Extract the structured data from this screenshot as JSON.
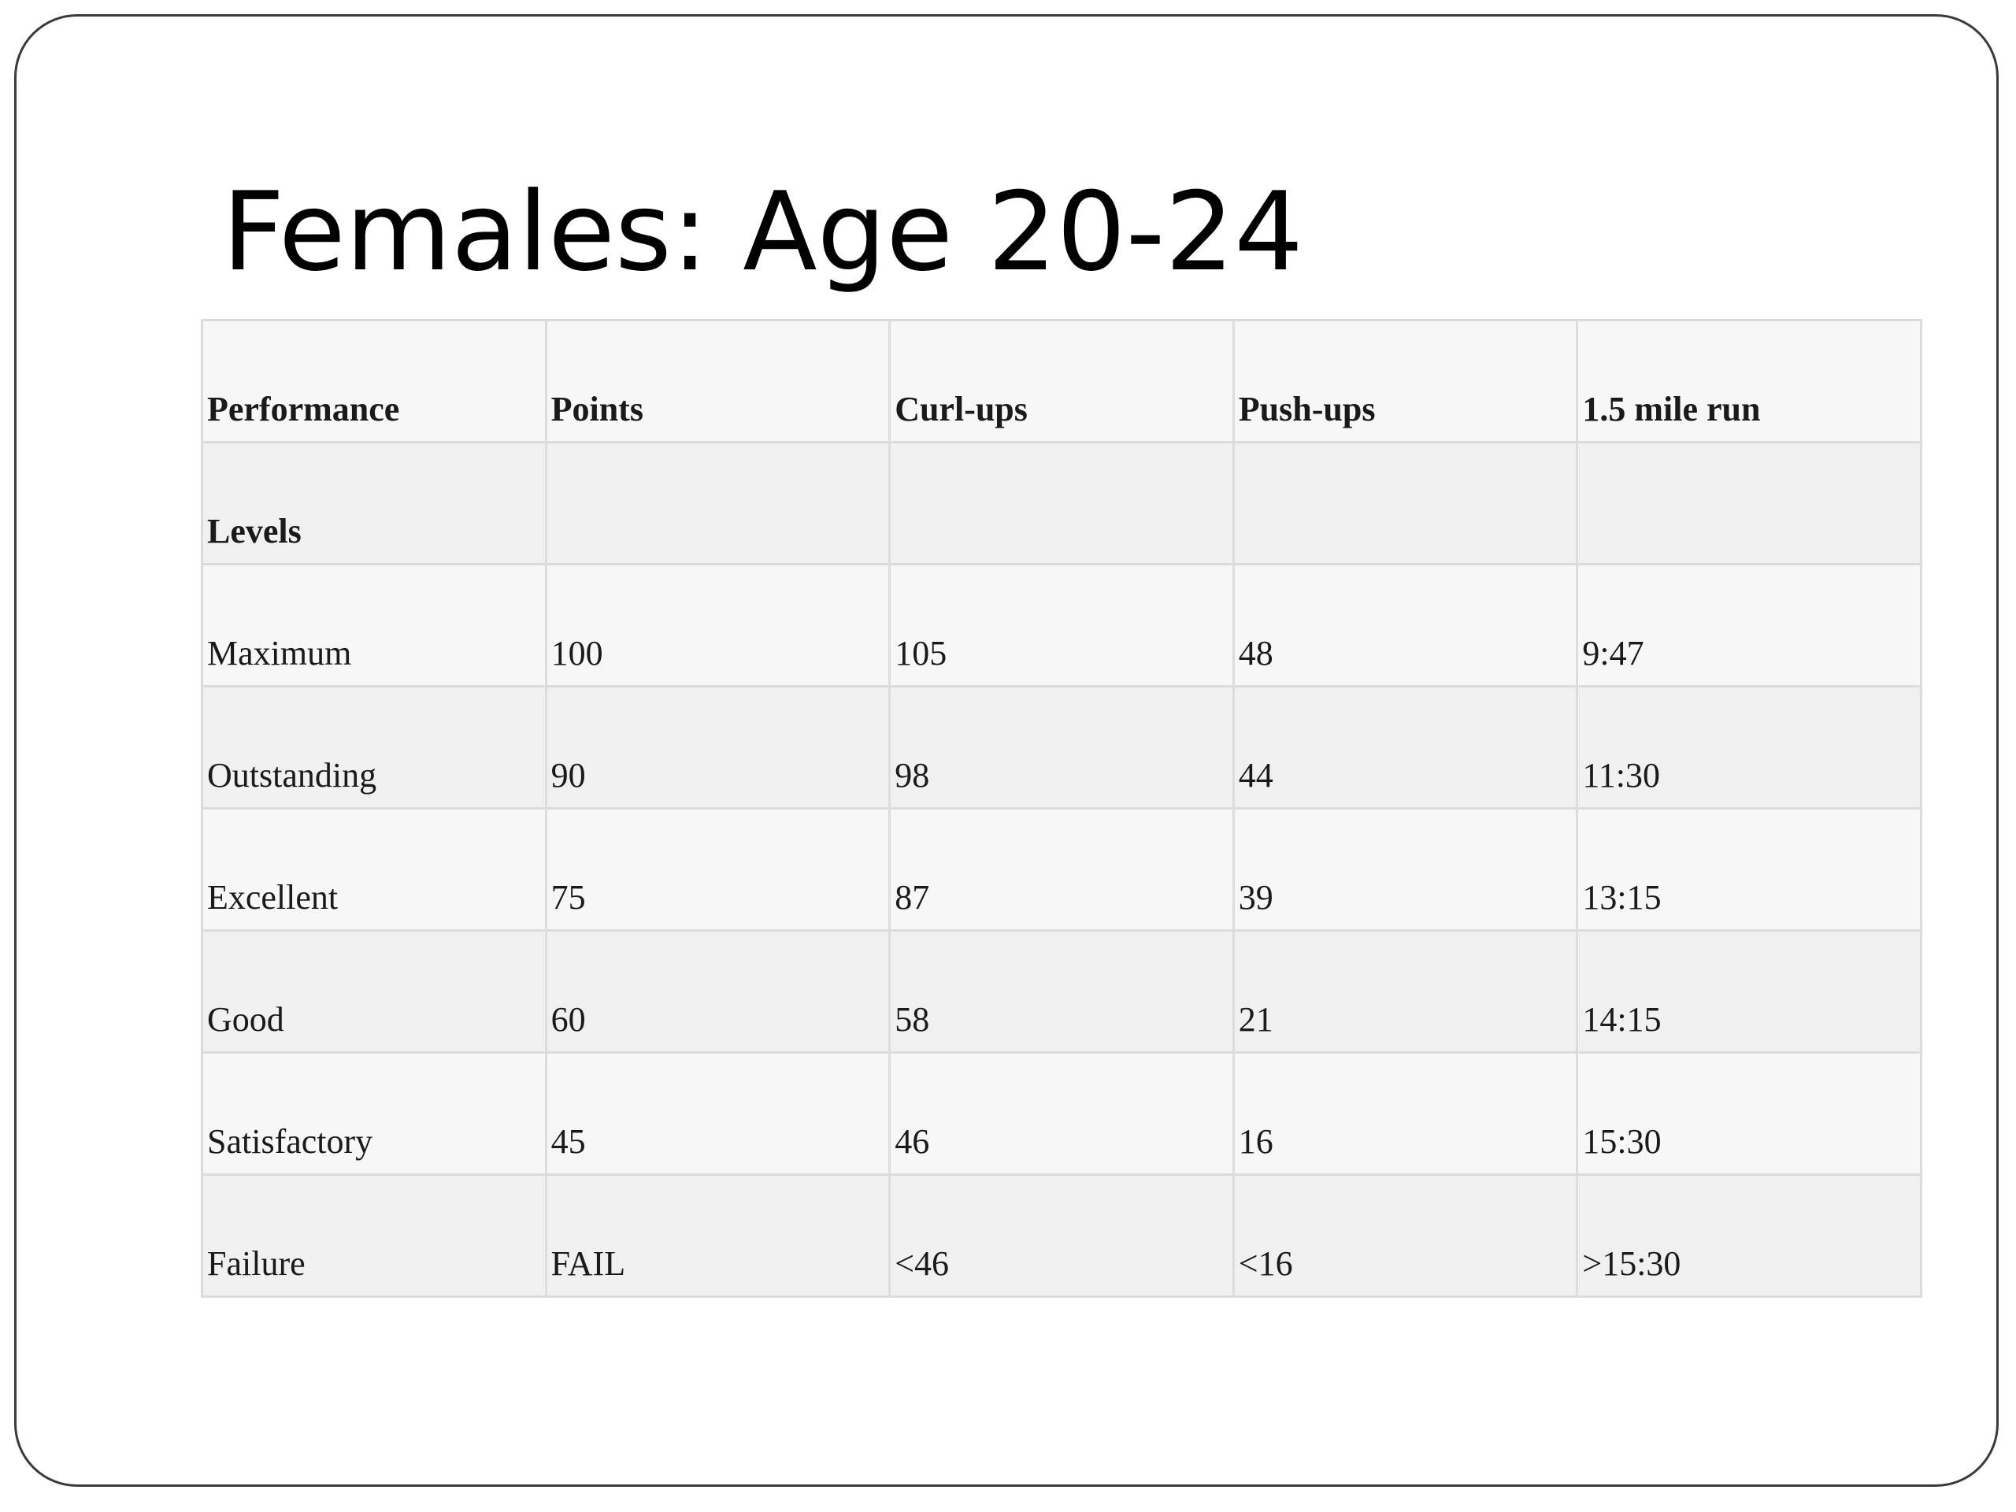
{
  "slide": {
    "title": "Females: Age 20-24"
  },
  "table": {
    "header": [
      "Performance",
      "Points",
      "Curl-ups",
      "Push-ups",
      "1.5 mile run"
    ],
    "subheader": [
      "Levels",
      "",
      "",
      "",
      ""
    ],
    "rows": [
      [
        "Maximum",
        "100",
        "105",
        "48",
        "9:47"
      ],
      [
        "Outstanding",
        "90",
        "98",
        "44",
        "11:30"
      ],
      [
        "Excellent",
        "75",
        "87",
        "39",
        "13:15"
      ],
      [
        "Good",
        "60",
        "58",
        "21",
        "14:15"
      ],
      [
        "Satisfactory",
        "45",
        "46",
        "16",
        "15:30"
      ],
      [
        "Failure",
        "FAIL",
        "<46",
        "<16",
        ">15:30"
      ]
    ]
  }
}
